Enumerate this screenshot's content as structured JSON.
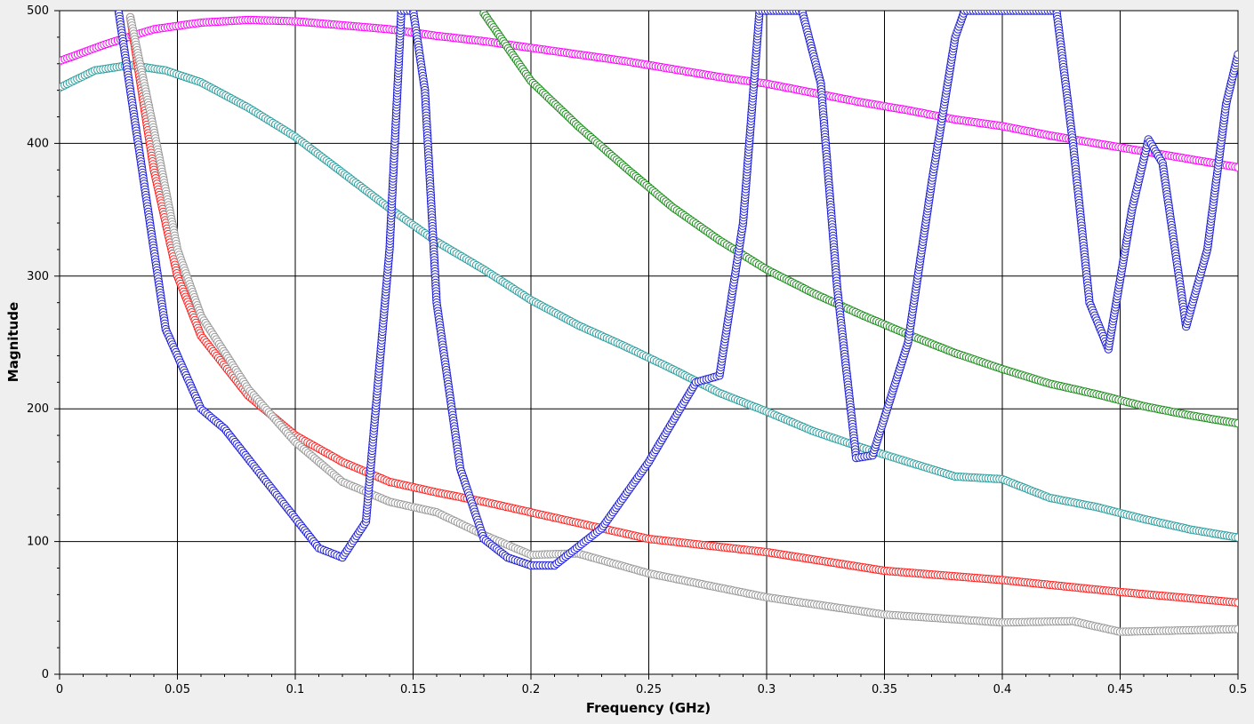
{
  "chart_data": {
    "type": "line",
    "title": "",
    "xlabel": "Frequency (GHz)",
    "ylabel": "Magnitude",
    "xlim": [
      0,
      0.5
    ],
    "ylim": [
      0,
      500
    ],
    "grid": true,
    "legend": "none",
    "x_ticks": [
      "0",
      "0.05",
      "0.1",
      "0.15",
      "0.2",
      "0.25",
      "0.3",
      "0.35",
      "0.4",
      "0.45",
      "0.5"
    ],
    "y_ticks": [
      "0",
      "100",
      "200",
      "300",
      "400",
      "500"
    ],
    "series": [
      {
        "color": "#ff00ff",
        "marker": "circle",
        "x": [
          0,
          0.02,
          0.04,
          0.06,
          0.08,
          0.1,
          0.12,
          0.14,
          0.16,
          0.18,
          0.2,
          0.22,
          0.24,
          0.26,
          0.28,
          0.3,
          0.32,
          0.34,
          0.36,
          0.38,
          0.4,
          0.42,
          0.44,
          0.46,
          0.48,
          0.5
        ],
        "y": [
          462,
          475,
          486,
          491,
          493,
          492,
          489,
          486,
          481,
          477,
          472,
          467,
          462,
          456,
          450,
          445,
          438,
          431,
          425,
          418,
          413,
          406,
          400,
          394,
          388,
          382
        ]
      },
      {
        "color": "#2e9e9e",
        "marker": "circle",
        "x": [
          0,
          0.015,
          0.03,
          0.045,
          0.06,
          0.08,
          0.1,
          0.12,
          0.14,
          0.16,
          0.18,
          0.2,
          0.22,
          0.24,
          0.26,
          0.28,
          0.3,
          0.32,
          0.34,
          0.36,
          0.38,
          0.4,
          0.42,
          0.44,
          0.46,
          0.48,
          0.5
        ],
        "y": [
          442,
          455,
          459,
          455,
          446,
          427,
          405,
          378,
          351,
          326,
          305,
          282,
          263,
          247,
          230,
          212,
          198,
          183,
          171,
          160,
          149,
          147,
          133,
          126,
          117,
          109,
          103
        ]
      },
      {
        "color": "#1e8c1e",
        "marker": "circle",
        "x": [
          0.18,
          0.2,
          0.22,
          0.24,
          0.26,
          0.28,
          0.3,
          0.32,
          0.34,
          0.36,
          0.38,
          0.4,
          0.42,
          0.44,
          0.46,
          0.48,
          0.5
        ],
        "y": [
          498,
          447,
          413,
          382,
          352,
          327,
          305,
          287,
          271,
          256,
          242,
          230,
          219,
          211,
          202,
          195,
          189
        ]
      },
      {
        "color": "#ff2020",
        "marker": "circle",
        "x": [
          0.03,
          0.04,
          0.05,
          0.06,
          0.08,
          0.1,
          0.12,
          0.14,
          0.16,
          0.18,
          0.2,
          0.25,
          0.3,
          0.35,
          0.4,
          0.45,
          0.5
        ],
        "y": [
          495,
          380,
          300,
          255,
          210,
          180,
          160,
          145,
          137,
          130,
          122,
          102,
          92,
          78,
          71,
          62,
          54
        ]
      },
      {
        "color": "#999999",
        "marker": "circle",
        "x": [
          0.03,
          0.04,
          0.05,
          0.06,
          0.08,
          0.1,
          0.12,
          0.14,
          0.16,
          0.18,
          0.2,
          0.22,
          0.25,
          0.3,
          0.35,
          0.4,
          0.43,
          0.45,
          0.5
        ],
        "y": [
          495,
          410,
          320,
          270,
          215,
          175,
          145,
          130,
          122,
          105,
          90,
          91,
          76,
          58,
          45,
          39,
          40,
          32,
          34
        ]
      },
      {
        "color": "#1f1fd6",
        "marker": "circle",
        "x": [
          0.025,
          0.035,
          0.045,
          0.06,
          0.07,
          0.09,
          0.11,
          0.12,
          0.13,
          0.14,
          0.145,
          0.15,
          0.155,
          0.16,
          0.17,
          0.18,
          0.19,
          0.2,
          0.21,
          0.23,
          0.25,
          0.27,
          0.28,
          0.29,
          0.297,
          0.303,
          0.315,
          0.323,
          0.33,
          0.338,
          0.345,
          0.36,
          0.37,
          0.38,
          0.384,
          0.423,
          0.43,
          0.437,
          0.445,
          0.455,
          0.462,
          0.468,
          0.478,
          0.487,
          0.495,
          0.5
        ],
        "y": [
          500,
          380,
          260,
          200,
          185,
          140,
          95,
          88,
          115,
          320,
          500,
          500,
          440,
          280,
          155,
          102,
          88,
          82,
          82,
          110,
          160,
          220,
          225,
          340,
          500,
          500,
          500,
          445,
          290,
          163,
          165,
          250,
          370,
          480,
          500,
          500,
          400,
          280,
          245,
          350,
          403,
          385,
          262,
          320,
          430,
          467
        ]
      }
    ]
  }
}
